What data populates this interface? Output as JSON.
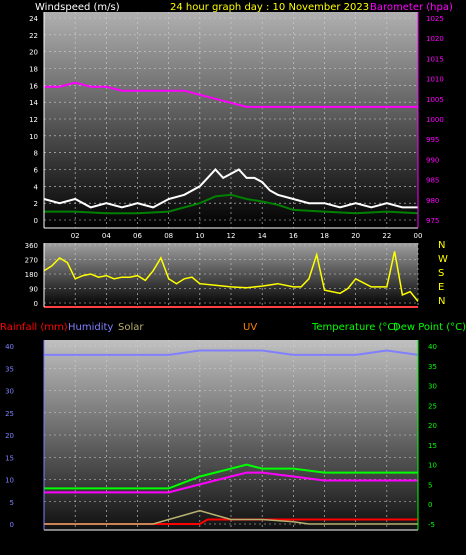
{
  "header": {
    "left": "Windspeed (m/s)",
    "center": "24 hour graph day : 10 November 2023",
    "right": "Barometer (hpa)"
  },
  "colors": {
    "white": "#ffffff",
    "yellow": "#ffff00",
    "magenta": "#ff00ff",
    "green": "#00ff00",
    "red": "#ff0000",
    "blue": "#8080ff",
    "khaki": "#b8b070",
    "orange": "#ff8000",
    "gust": "#ffffff",
    "avg": "#c0c0c0",
    "wind_green": "#008000",
    "wind_light": "#c0ffc0"
  },
  "panel2_header": {
    "rainfall": "Rainfall (mm)",
    "humidity": "Humidity",
    "solar": "Solar",
    "uv": "UV",
    "temperature": "Temperature (°C)",
    "dewpoint": "Dew Point (°C)"
  },
  "compass": [
    "N",
    "W",
    "S",
    "E",
    "N"
  ],
  "chart_data": [
    {
      "type": "line",
      "x_ticks": [
        "02",
        "04",
        "06",
        "08",
        "10",
        "12",
        "14",
        "16",
        "18",
        "20",
        "22",
        "00"
      ],
      "y_left_ticks": [
        "0",
        "2",
        "4",
        "6",
        "8",
        "10",
        "12",
        "14",
        "16",
        "18",
        "20",
        "22",
        "24"
      ],
      "y_left_lim": [
        0,
        25
      ],
      "y_right_ticks": [
        "975",
        "980",
        "985",
        "990",
        "995",
        "1000",
        "1005",
        "1010",
        "1015",
        "1020",
        "1025"
      ],
      "y_right_lim": [
        973,
        1025
      ],
      "series": [
        {
          "color": "white",
          "x": [
            0,
            1,
            2,
            3,
            4,
            5,
            6,
            7,
            8,
            9,
            10,
            10.5,
            11,
            11.5,
            12,
            12.5,
            13,
            13.5,
            14,
            14.5,
            15,
            16,
            17,
            18,
            19,
            20,
            21,
            22,
            23,
            24
          ],
          "values": [
            2.5,
            2,
            2.5,
            1.5,
            2,
            1.5,
            2,
            1.5,
            2.5,
            3,
            4,
            5,
            6,
            5,
            5.5,
            6,
            5,
            5,
            4.5,
            3.5,
            3,
            2.5,
            2,
            2,
            1.5,
            2,
            1.5,
            2,
            1.5,
            1.5
          ]
        },
        {
          "color": "wind_green",
          "x": [
            0,
            2,
            4,
            6,
            8,
            9,
            10,
            11,
            12,
            13,
            14,
            15,
            16,
            18,
            20,
            22,
            24
          ],
          "values": [
            1,
            1,
            0.8,
            0.8,
            1,
            1.5,
            2,
            2.8,
            3,
            2.5,
            2.2,
            1.8,
            1.2,
            1,
            0.8,
            1,
            0.8
          ]
        },
        {
          "color": "magenta",
          "x": [
            0,
            1,
            2,
            3,
            4,
            5,
            6,
            7,
            8,
            9,
            10,
            11,
            12,
            13,
            14,
            15,
            16,
            17,
            18,
            19,
            20,
            21,
            22,
            23,
            24
          ],
          "values": [
            1008,
            1008,
            1009,
            1008,
            1008,
            1007,
            1007,
            1007,
            1007,
            1007,
            1006,
            1005,
            1004,
            1003,
            1003,
            1003,
            1003,
            1003,
            1003,
            1003,
            1003,
            1003,
            1003,
            1003,
            1003
          ]
        }
      ]
    },
    {
      "type": "line",
      "y_ticks": [
        "0",
        "90",
        "180",
        "270",
        "360"
      ],
      "y_lim": [
        0,
        360
      ],
      "series": [
        {
          "color": "yellow",
          "x": [
            0,
            0.5,
            1,
            1.5,
            2,
            2.5,
            3,
            3.5,
            4,
            4.5,
            5,
            5.5,
            6,
            6.5,
            7,
            7.5,
            8,
            8.5,
            9,
            9.5,
            10,
            11,
            12,
            13,
            14,
            15,
            16,
            16.5,
            17,
            17.5,
            18,
            19,
            19.5,
            20,
            21,
            22,
            22.5,
            23,
            23.5,
            24
          ],
          "values": [
            200,
            230,
            280,
            250,
            150,
            170,
            180,
            160,
            170,
            150,
            160,
            160,
            170,
            140,
            200,
            280,
            150,
            120,
            150,
            160,
            120,
            110,
            100,
            95,
            105,
            120,
            100,
            100,
            150,
            300,
            80,
            60,
            90,
            150,
            100,
            100,
            320,
            50,
            70,
            10
          ]
        }
      ]
    },
    {
      "type": "line",
      "y_left_ticks": [
        "0",
        "5",
        "10",
        "15",
        "20",
        "25",
        "30",
        "35",
        "40"
      ],
      "y_right_ticks": [
        "-5",
        "0",
        "5",
        "10",
        "15",
        "20",
        "25",
        "30",
        "35",
        "40"
      ],
      "x_ticks": [
        "02",
        "04",
        "06",
        "08",
        "10",
        "12",
        "14",
        "16",
        "18",
        "20",
        "22",
        "00"
      ],
      "series": [
        {
          "color": "blue",
          "x": [
            0,
            2,
            4,
            6,
            8,
            10,
            12,
            14,
            16,
            18,
            20,
            22,
            24
          ],
          "values": [
            38,
            38,
            38,
            38,
            38,
            39,
            39,
            39,
            38,
            38,
            38,
            39,
            38
          ]
        },
        {
          "color": "green",
          "x": [
            0,
            2,
            4,
            6,
            8,
            10,
            12,
            13,
            14,
            16,
            18,
            20,
            22,
            24
          ],
          "values": [
            4,
            4,
            4,
            4,
            4,
            7,
            9,
            10,
            9,
            9,
            8,
            8,
            8,
            8
          ]
        },
        {
          "color": "magenta",
          "x": [
            0,
            2,
            4,
            6,
            8,
            10,
            12,
            13,
            14,
            16,
            18,
            20,
            22,
            24
          ],
          "values": [
            3,
            3,
            3,
            3,
            3,
            5,
            7,
            8,
            8,
            7,
            6,
            6,
            6,
            6
          ]
        },
        {
          "color": "red",
          "x": [
            0,
            8,
            10,
            10.5,
            12,
            14,
            16,
            18,
            20,
            22,
            24
          ],
          "values": [
            0,
            0,
            0,
            1,
            1,
            1,
            1,
            1,
            1,
            1,
            1
          ]
        },
        {
          "color": "khaki",
          "x": [
            0,
            7,
            8,
            9,
            10,
            11,
            12,
            14,
            16,
            17,
            24
          ],
          "values": [
            0,
            0,
            1,
            2,
            3,
            2,
            1,
            1,
            0.5,
            0,
            0
          ]
        }
      ]
    }
  ]
}
